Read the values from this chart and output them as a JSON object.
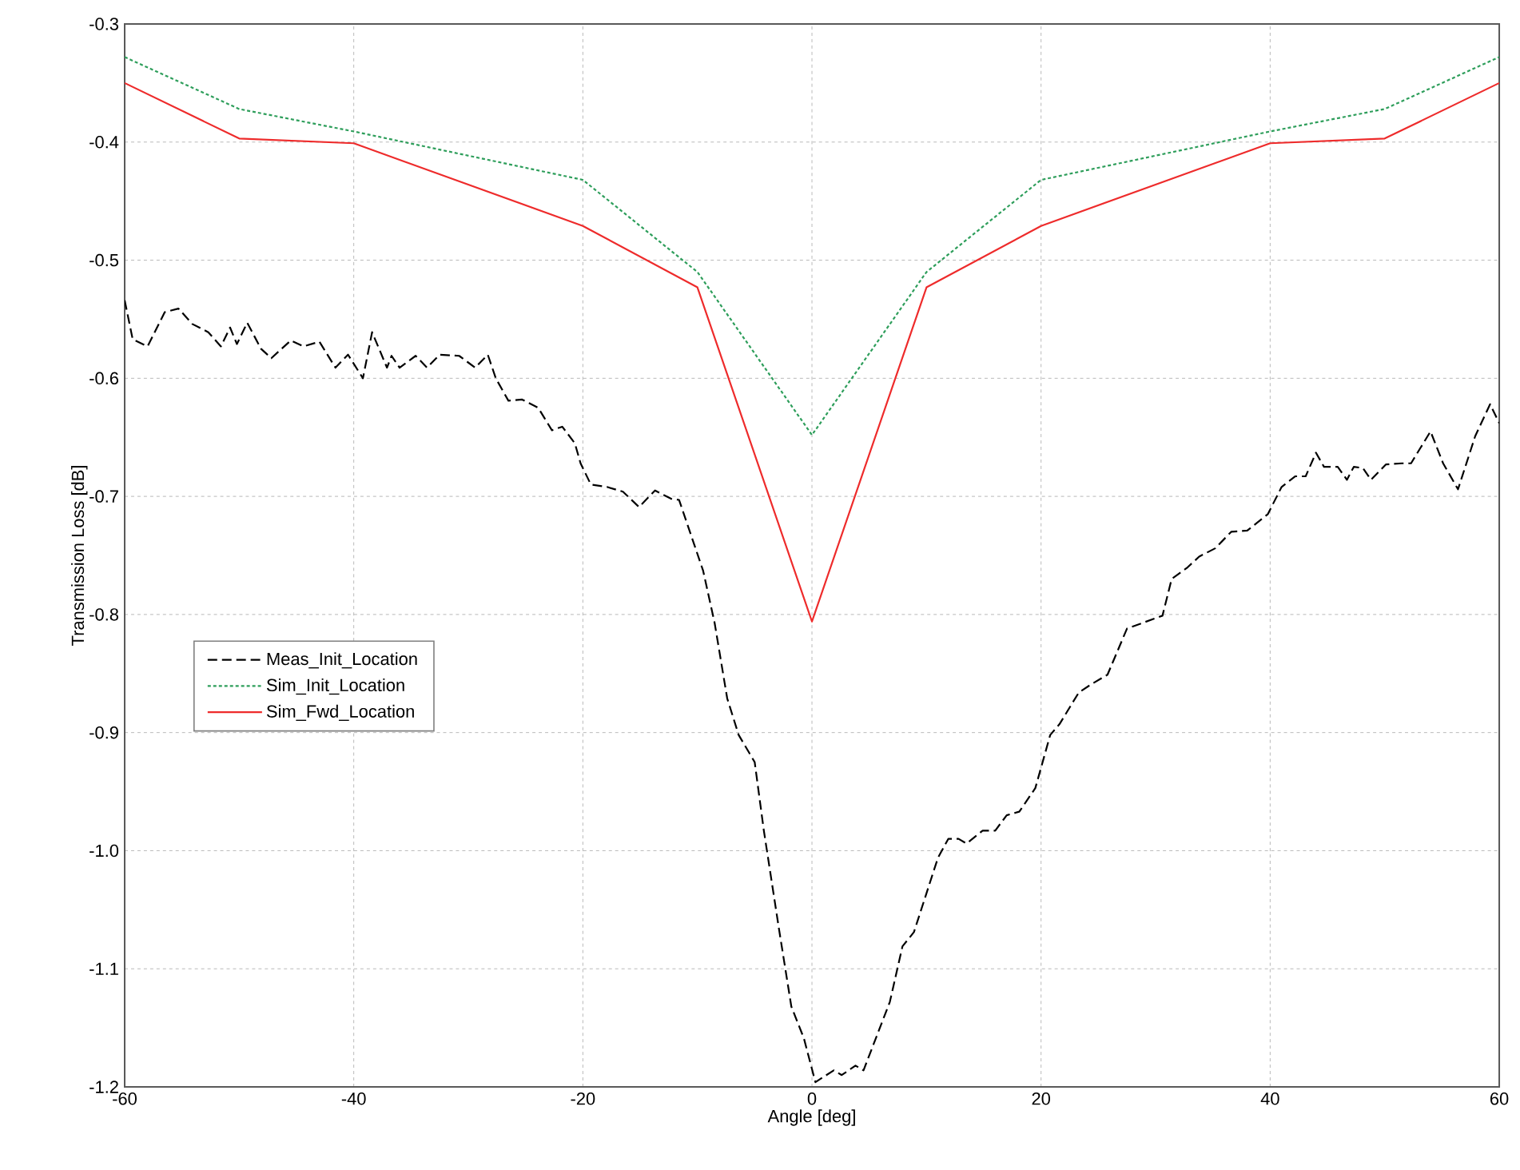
{
  "chart_data": {
    "type": "line",
    "xlabel": "Angle [deg]",
    "ylabel": "Transmission Loss [dB]",
    "xlim": [
      -60,
      60
    ],
    "ylim": [
      -1.2,
      -0.3
    ],
    "xticks": [
      -60,
      -40,
      -20,
      0,
      20,
      40,
      60
    ],
    "yticks": [
      {
        "value": -1.2,
        "label": "-1.2"
      },
      {
        "value": -1.1,
        "label": "-1.1"
      },
      {
        "value": -1.0,
        "label": "-1.0"
      },
      {
        "value": -0.9,
        "label": "-0.9"
      },
      {
        "value": -0.8,
        "label": "-0.8"
      },
      {
        "value": -0.7,
        "label": "-0.7"
      },
      {
        "value": -0.6,
        "label": "-0.6"
      },
      {
        "value": -0.5,
        "label": "-0.5"
      },
      {
        "value": -0.4,
        "label": "-0.4"
      },
      {
        "value": -0.3,
        "label": "-0.3"
      }
    ],
    "grid": true,
    "legend": "left",
    "series": [
      {
        "name": "Meas_Init_Location",
        "color": "#000000",
        "line_style": "dashed",
        "x": [
          -60,
          -59.3,
          -58,
          -56.5,
          -55.3,
          -54.1,
          -52.7,
          -51.6,
          -50.8,
          -50.2,
          -49.3,
          -48.1,
          -47.2,
          -45.5,
          -44.4,
          -43,
          -41.6,
          -40.5,
          -39.2,
          -38.4,
          -37.1,
          -36.7,
          -36,
          -34.6,
          -33.6,
          -32.5,
          -30.8,
          -29.4,
          -28.3,
          -27.6,
          -26.5,
          -25.3,
          -23.9,
          -22.7,
          -21.8,
          -20.7,
          -20.2,
          -19.3,
          -17.9,
          -16.5,
          -15.1,
          -13.7,
          -12.3,
          -11.6,
          -9.5,
          -8.5,
          -7.4,
          -6.4,
          -5,
          -4.2,
          -2.9,
          -1.8,
          -0.7,
          0.3,
          1.9,
          2.6,
          3.8,
          4.5,
          6.8,
          7.9,
          8.9,
          11,
          11.9,
          12.8,
          13.5,
          14.9,
          16,
          17,
          18.1,
          19.5,
          20.8,
          21.6,
          23.3,
          24.4,
          25.8,
          27.5,
          30.6,
          31.4,
          32.8,
          33.8,
          35.2,
          36.6,
          38,
          39.8,
          41,
          42.2,
          43.1,
          44,
          44.7,
          45.9,
          46.7,
          47.3,
          48.1,
          48.8,
          50.1,
          51.5,
          52.3,
          54,
          55.1,
          56.4,
          57.9,
          59.2,
          60
        ],
        "values": [
          -0.534,
          -0.567,
          -0.573,
          -0.544,
          -0.541,
          -0.554,
          -0.561,
          -0.573,
          -0.557,
          -0.571,
          -0.553,
          -0.575,
          -0.583,
          -0.568,
          -0.573,
          -0.569,
          -0.591,
          -0.58,
          -0.6,
          -0.561,
          -0.591,
          -0.581,
          -0.591,
          -0.581,
          -0.591,
          -0.58,
          -0.581,
          -0.591,
          -0.58,
          -0.6,
          -0.619,
          -0.618,
          -0.625,
          -0.644,
          -0.641,
          -0.655,
          -0.672,
          -0.69,
          -0.692,
          -0.696,
          -0.709,
          -0.695,
          -0.702,
          -0.703,
          -0.763,
          -0.807,
          -0.871,
          -0.902,
          -0.925,
          -0.983,
          -1.065,
          -1.132,
          -1.159,
          -1.196,
          -1.186,
          -1.19,
          -1.182,
          -1.186,
          -1.128,
          -1.081,
          -1.069,
          -1.006,
          -0.99,
          -0.99,
          -0.994,
          -0.983,
          -0.983,
          -0.97,
          -0.967,
          -0.947,
          -0.902,
          -0.893,
          -0.866,
          -0.859,
          -0.851,
          -0.812,
          -0.801,
          -0.77,
          -0.76,
          -0.751,
          -0.744,
          -0.73,
          -0.729,
          -0.715,
          -0.692,
          -0.683,
          -0.683,
          -0.663,
          -0.675,
          -0.675,
          -0.686,
          -0.675,
          -0.676,
          -0.686,
          -0.673,
          -0.672,
          -0.672,
          -0.645,
          -0.672,
          -0.694,
          -0.649,
          -0.622,
          -0.638
        ]
      },
      {
        "name": "Sim_Init_Location",
        "color": "#2e9e5b",
        "line_style": "dotted",
        "x": [
          -60,
          -50,
          -40,
          -20,
          -10,
          0,
          10,
          20,
          40,
          50,
          60
        ],
        "values": [
          -0.328,
          -0.372,
          -0.391,
          -0.432,
          -0.51,
          -0.648,
          -0.51,
          -0.432,
          -0.391,
          -0.372,
          -0.328
        ]
      },
      {
        "name": "Sim_Fwd_Location",
        "color": "#ee2b2b",
        "line_style": "solid",
        "x": [
          -60,
          -50,
          -40,
          -20,
          -10,
          0,
          10,
          20,
          40,
          50,
          60
        ],
        "values": [
          -0.35,
          -0.397,
          -0.401,
          -0.471,
          -0.523,
          -0.806,
          -0.523,
          -0.471,
          -0.401,
          -0.397,
          -0.35
        ]
      }
    ]
  }
}
